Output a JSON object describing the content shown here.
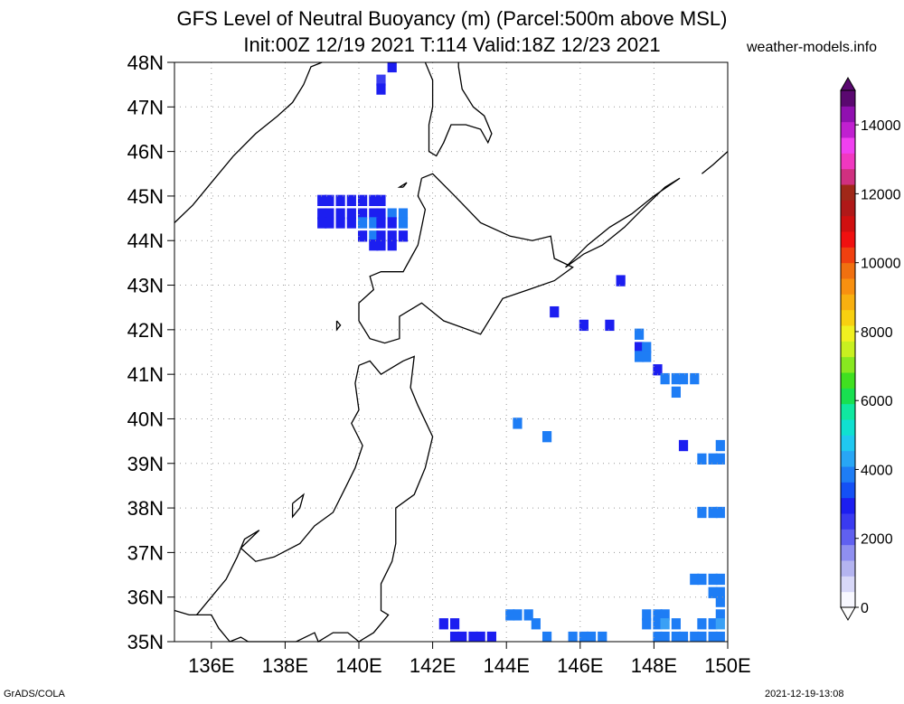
{
  "title_line1": "GFS Level of Neutral Buoyancy (m) (Parcel:500m above MSL)",
  "title_line2": "Init:00Z 12/19 2021 T:114 Valid:18Z 12/23 2021",
  "site": "weather-models.info",
  "footer_left": "GrADS/COLA",
  "footer_right": "2021-12-19-13:08",
  "map": {
    "lon_range": [
      135,
      150
    ],
    "lat_range": [
      35,
      48
    ],
    "lat_labels": [
      "48N",
      "47N",
      "46N",
      "45N",
      "44N",
      "43N",
      "42N",
      "41N",
      "40N",
      "39N",
      "38N",
      "37N",
      "36N",
      "35N"
    ],
    "lon_labels": [
      "136E",
      "138E",
      "140E",
      "142E",
      "144E",
      "146E",
      "148E",
      "150E"
    ],
    "grid": "dotted"
  },
  "colorbar": {
    "labels": [
      "14000",
      "12000",
      "10000",
      "8000",
      "6000",
      "4000",
      "2000",
      "0"
    ],
    "range": [
      0,
      15000
    ]
  },
  "field_cells": [
    {
      "lon": 139.0,
      "lat": 44.9,
      "c": "#1c1ef0"
    },
    {
      "lon": 139.2,
      "lat": 44.9,
      "c": "#1c1ef0"
    },
    {
      "lon": 139.5,
      "lat": 44.9,
      "c": "#1c1ef0"
    },
    {
      "lon": 139.8,
      "lat": 44.9,
      "c": "#1c1ef0"
    },
    {
      "lon": 140.1,
      "lat": 44.9,
      "c": "#1c1ef0"
    },
    {
      "lon": 140.4,
      "lat": 44.9,
      "c": "#1c1ef0"
    },
    {
      "lon": 140.6,
      "lat": 44.9,
      "c": "#1c1ef0"
    },
    {
      "lon": 139.0,
      "lat": 44.6,
      "c": "#1c1ef0"
    },
    {
      "lon": 139.2,
      "lat": 44.6,
      "c": "#1c1ef0"
    },
    {
      "lon": 139.5,
      "lat": 44.6,
      "c": "#1c1ef0"
    },
    {
      "lon": 139.8,
      "lat": 44.6,
      "c": "#1c1ef0"
    },
    {
      "lon": 140.1,
      "lat": 44.6,
      "c": "#1c1ef0"
    },
    {
      "lon": 140.4,
      "lat": 44.6,
      "c": "#1c1ef0"
    },
    {
      "lon": 140.6,
      "lat": 44.6,
      "c": "#1c1ef0"
    },
    {
      "lon": 140.9,
      "lat": 44.6,
      "c": "#1e7df5"
    },
    {
      "lon": 141.2,
      "lat": 44.6,
      "c": "#1e7df5"
    },
    {
      "lon": 139.0,
      "lat": 44.4,
      "c": "#1c1ef0"
    },
    {
      "lon": 139.2,
      "lat": 44.4,
      "c": "#1c1ef0"
    },
    {
      "lon": 139.5,
      "lat": 44.4,
      "c": "#1c1ef0"
    },
    {
      "lon": 139.8,
      "lat": 44.4,
      "c": "#1c1ef0"
    },
    {
      "lon": 140.1,
      "lat": 44.4,
      "c": "#1e7df5"
    },
    {
      "lon": 140.4,
      "lat": 44.4,
      "c": "#1e7df5"
    },
    {
      "lon": 140.6,
      "lat": 44.4,
      "c": "#1c1ef0"
    },
    {
      "lon": 140.9,
      "lat": 44.4,
      "c": "#1c1ef0"
    },
    {
      "lon": 141.2,
      "lat": 44.4,
      "c": "#1e7df5"
    },
    {
      "lon": 140.1,
      "lat": 44.1,
      "c": "#1c1ef0"
    },
    {
      "lon": 140.4,
      "lat": 44.1,
      "c": "#1e7df5"
    },
    {
      "lon": 140.6,
      "lat": 44.1,
      "c": "#1c1ef0"
    },
    {
      "lon": 140.9,
      "lat": 44.1,
      "c": "#1c1ef0"
    },
    {
      "lon": 141.2,
      "lat": 44.1,
      "c": "#1c1ef0"
    },
    {
      "lon": 140.4,
      "lat": 43.9,
      "c": "#1c1ef0"
    },
    {
      "lon": 140.6,
      "lat": 43.9,
      "c": "#1c1ef0"
    },
    {
      "lon": 140.9,
      "lat": 43.9,
      "c": "#1c1ef0"
    },
    {
      "lon": 140.9,
      "lat": 47.9,
      "c": "#1c1ef0"
    },
    {
      "lon": 140.6,
      "lat": 47.6,
      "c": "#3a3df0"
    },
    {
      "lon": 140.6,
      "lat": 47.4,
      "c": "#1c1ef0"
    },
    {
      "lon": 147.1,
      "lat": 43.1,
      "c": "#1c1ef0"
    },
    {
      "lon": 145.3,
      "lat": 42.4,
      "c": "#1c1ef0"
    },
    {
      "lon": 146.1,
      "lat": 42.1,
      "c": "#1c1ef0"
    },
    {
      "lon": 146.8,
      "lat": 42.1,
      "c": "#1c1ef0"
    },
    {
      "lon": 147.6,
      "lat": 41.9,
      "c": "#1e7df5"
    },
    {
      "lon": 147.6,
      "lat": 41.6,
      "c": "#1c1ef0"
    },
    {
      "lon": 147.6,
      "lat": 41.4,
      "c": "#1e7df5"
    },
    {
      "lon": 147.8,
      "lat": 41.6,
      "c": "#1e7df5"
    },
    {
      "lon": 147.8,
      "lat": 41.4,
      "c": "#1e7df5"
    },
    {
      "lon": 148.1,
      "lat": 41.1,
      "c": "#1c1ef0"
    },
    {
      "lon": 148.3,
      "lat": 40.9,
      "c": "#1e7df5"
    },
    {
      "lon": 148.6,
      "lat": 40.9,
      "c": "#1e7df5"
    },
    {
      "lon": 148.8,
      "lat": 40.9,
      "c": "#1e7df5"
    },
    {
      "lon": 149.1,
      "lat": 40.9,
      "c": "#1e7df5"
    },
    {
      "lon": 148.6,
      "lat": 40.6,
      "c": "#1e7df5"
    },
    {
      "lon": 144.3,
      "lat": 39.9,
      "c": "#1e7df5"
    },
    {
      "lon": 145.1,
      "lat": 39.6,
      "c": "#1e7df5"
    },
    {
      "lon": 148.8,
      "lat": 39.4,
      "c": "#1c1ef0"
    },
    {
      "lon": 149.8,
      "lat": 39.4,
      "c": "#1e7df5"
    },
    {
      "lon": 149.3,
      "lat": 39.1,
      "c": "#1e7df5"
    },
    {
      "lon": 149.6,
      "lat": 39.1,
      "c": "#1e7df5"
    },
    {
      "lon": 149.8,
      "lat": 39.1,
      "c": "#1e7df5"
    },
    {
      "lon": 149.3,
      "lat": 37.9,
      "c": "#1e7df5"
    },
    {
      "lon": 149.6,
      "lat": 37.9,
      "c": "#1e7df5"
    },
    {
      "lon": 149.8,
      "lat": 37.9,
      "c": "#1e7df5"
    },
    {
      "lon": 149.1,
      "lat": 36.4,
      "c": "#1e7df5"
    },
    {
      "lon": 149.3,
      "lat": 36.4,
      "c": "#1e7df5"
    },
    {
      "lon": 149.6,
      "lat": 36.4,
      "c": "#1e7df5"
    },
    {
      "lon": 149.8,
      "lat": 36.4,
      "c": "#1e7df5"
    },
    {
      "lon": 149.6,
      "lat": 36.1,
      "c": "#1e7df5"
    },
    {
      "lon": 149.8,
      "lat": 36.1,
      "c": "#1e7df5"
    },
    {
      "lon": 149.8,
      "lat": 35.9,
      "c": "#1e7df5"
    },
    {
      "lon": 149.8,
      "lat": 35.6,
      "c": "#1e7df5"
    },
    {
      "lon": 144.1,
      "lat": 35.6,
      "c": "#1e7df5"
    },
    {
      "lon": 144.3,
      "lat": 35.6,
      "c": "#1e7df5"
    },
    {
      "lon": 144.6,
      "lat": 35.6,
      "c": "#1e7df5"
    },
    {
      "lon": 142.3,
      "lat": 35.4,
      "c": "#1c1ef0"
    },
    {
      "lon": 142.6,
      "lat": 35.4,
      "c": "#1c1ef0"
    },
    {
      "lon": 144.8,
      "lat": 35.4,
      "c": "#1e7df5"
    },
    {
      "lon": 142.6,
      "lat": 35.1,
      "c": "#1c1ef0"
    },
    {
      "lon": 142.8,
      "lat": 35.1,
      "c": "#1c1ef0"
    },
    {
      "lon": 143.1,
      "lat": 35.1,
      "c": "#1c1ef0"
    },
    {
      "lon": 143.3,
      "lat": 35.1,
      "c": "#1c1ef0"
    },
    {
      "lon": 143.6,
      "lat": 35.1,
      "c": "#1c1ef0"
    },
    {
      "lon": 145.1,
      "lat": 35.1,
      "c": "#1e7df5"
    },
    {
      "lon": 145.8,
      "lat": 35.1,
      "c": "#1e7df5"
    },
    {
      "lon": 146.1,
      "lat": 35.1,
      "c": "#1e7df5"
    },
    {
      "lon": 146.3,
      "lat": 35.1,
      "c": "#1e7df5"
    },
    {
      "lon": 146.6,
      "lat": 35.1,
      "c": "#1e7df5"
    },
    {
      "lon": 147.8,
      "lat": 35.6,
      "c": "#1e7df5"
    },
    {
      "lon": 148.1,
      "lat": 35.6,
      "c": "#1e7df5"
    },
    {
      "lon": 148.3,
      "lat": 35.6,
      "c": "#1e7df5"
    },
    {
      "lon": 147.8,
      "lat": 35.4,
      "c": "#1e7df5"
    },
    {
      "lon": 148.1,
      "lat": 35.4,
      "c": "#1e7df5"
    },
    {
      "lon": 148.3,
      "lat": 35.4,
      "c": "#3aa0f5"
    },
    {
      "lon": 148.6,
      "lat": 35.4,
      "c": "#1e7df5"
    },
    {
      "lon": 149.3,
      "lat": 35.4,
      "c": "#1e7df5"
    },
    {
      "lon": 149.6,
      "lat": 35.4,
      "c": "#1e7df5"
    },
    {
      "lon": 149.8,
      "lat": 35.4,
      "c": "#3aa0f5"
    },
    {
      "lon": 148.1,
      "lat": 35.1,
      "c": "#1e7df5"
    },
    {
      "lon": 148.3,
      "lat": 35.1,
      "c": "#1e7df5"
    },
    {
      "lon": 148.6,
      "lat": 35.1,
      "c": "#1e7df5"
    },
    {
      "lon": 148.8,
      "lat": 35.1,
      "c": "#1e7df5"
    },
    {
      "lon": 149.1,
      "lat": 35.1,
      "c": "#1e7df5"
    },
    {
      "lon": 149.3,
      "lat": 35.1,
      "c": "#1e7df5"
    },
    {
      "lon": 149.6,
      "lat": 35.1,
      "c": "#1e7df5"
    },
    {
      "lon": 149.8,
      "lat": 35.1,
      "c": "#1e7df5"
    }
  ],
  "colorbar_colors": [
    "#f8f8ff",
    "#d8d8f8",
    "#b4b4f0",
    "#8f8ff0",
    "#6060f0",
    "#3a3af0",
    "#1c1ef0",
    "#1450f5",
    "#1e7df5",
    "#28a6f5",
    "#20c8f0",
    "#10e0d0",
    "#10e8a0",
    "#18e050",
    "#40e020",
    "#88e820",
    "#c8f020",
    "#f0f020",
    "#f8d010",
    "#f8b010",
    "#f89010",
    "#f07010",
    "#f04010",
    "#f01010",
    "#d01010",
    "#b01818",
    "#a02818",
    "#d03080",
    "#f038c0",
    "#f040f0",
    "#c020d0",
    "#9010b0",
    "#5a0870"
  ],
  "coastlines": [
    [
      [
        135.0,
        44.4
      ],
      [
        135.5,
        44.8
      ],
      [
        136.0,
        45.3
      ],
      [
        136.6,
        45.9
      ],
      [
        137.2,
        46.4
      ],
      [
        137.8,
        46.8
      ],
      [
        138.2,
        47.1
      ],
      [
        138.5,
        47.5
      ],
      [
        138.7,
        47.9
      ],
      [
        139.0,
        48.0
      ]
    ],
    [
      [
        141.8,
        48.0
      ],
      [
        142.0,
        47.6
      ],
      [
        142.0,
        47.0
      ],
      [
        141.9,
        46.6
      ],
      [
        141.9,
        46.0
      ],
      [
        142.1,
        45.9
      ],
      [
        142.3,
        46.2
      ],
      [
        142.5,
        46.6
      ],
      [
        142.9,
        46.6
      ],
      [
        143.3,
        46.5
      ],
      [
        143.5,
        46.2
      ],
      [
        143.6,
        46.4
      ],
      [
        143.4,
        46.8
      ],
      [
        143.1,
        47.0
      ],
      [
        142.8,
        47.4
      ],
      [
        142.7,
        47.9
      ],
      [
        142.7,
        48.0
      ]
    ],
    [
      [
        141.7,
        45.4
      ],
      [
        141.6,
        45.0
      ],
      [
        141.8,
        44.7
      ],
      [
        141.7,
        44.3
      ],
      [
        141.6,
        43.9
      ],
      [
        141.4,
        43.6
      ],
      [
        141.2,
        43.3
      ],
      [
        140.6,
        43.3
      ],
      [
        140.3,
        43.2
      ],
      [
        140.4,
        42.9
      ],
      [
        140.0,
        42.6
      ],
      [
        140.0,
        42.2
      ],
      [
        140.3,
        41.8
      ],
      [
        140.7,
        41.7
      ],
      [
        141.1,
        41.8
      ],
      [
        141.1,
        42.3
      ],
      [
        141.7,
        42.6
      ],
      [
        142.3,
        42.2
      ],
      [
        143.3,
        41.9
      ],
      [
        143.9,
        42.7
      ],
      [
        144.6,
        42.9
      ],
      [
        145.3,
        43.1
      ],
      [
        145.8,
        43.4
      ],
      [
        145.3,
        43.6
      ],
      [
        145.2,
        44.1
      ],
      [
        144.7,
        44.0
      ],
      [
        144.1,
        44.1
      ],
      [
        143.3,
        44.4
      ],
      [
        142.6,
        45.0
      ],
      [
        142.0,
        45.5
      ],
      [
        141.7,
        45.4
      ]
    ],
    [
      [
        140.0,
        41.2
      ],
      [
        140.3,
        41.3
      ],
      [
        140.6,
        41.0
      ],
      [
        141.0,
        41.2
      ],
      [
        141.2,
        41.3
      ],
      [
        141.5,
        41.4
      ],
      [
        141.4,
        40.7
      ],
      [
        141.6,
        40.3
      ],
      [
        142.0,
        39.6
      ],
      [
        141.8,
        38.9
      ],
      [
        141.5,
        38.3
      ],
      [
        141.0,
        38.0
      ],
      [
        141.0,
        37.2
      ],
      [
        140.9,
        36.8
      ],
      [
        140.6,
        36.3
      ],
      [
        140.6,
        35.7
      ],
      [
        140.8,
        35.6
      ],
      [
        140.4,
        35.2
      ],
      [
        140.0,
        35.0
      ],
      [
        139.7,
        35.2
      ],
      [
        139.3,
        35.2
      ],
      [
        138.9,
        35.0
      ],
      [
        138.8,
        35.2
      ],
      [
        138.3,
        35.0
      ],
      [
        137.5,
        35.0
      ],
      [
        137.0,
        35.0
      ],
      [
        136.8,
        35.1
      ],
      [
        136.5,
        35.0
      ],
      [
        136.2,
        35.3
      ],
      [
        136.0,
        35.6
      ],
      [
        135.4,
        35.6
      ],
      [
        135.0,
        35.7
      ]
    ],
    [
      [
        140.0,
        41.2
      ],
      [
        139.9,
        40.8
      ],
      [
        140.0,
        40.2
      ],
      [
        139.8,
        39.9
      ],
      [
        140.1,
        39.4
      ],
      [
        139.9,
        38.9
      ],
      [
        139.6,
        38.4
      ],
      [
        139.3,
        37.9
      ],
      [
        138.8,
        37.6
      ],
      [
        138.4,
        37.2
      ],
      [
        137.7,
        36.9
      ],
      [
        137.2,
        36.8
      ],
      [
        136.8,
        37.1
      ],
      [
        137.3,
        37.5
      ],
      [
        136.9,
        37.3
      ],
      [
        136.7,
        36.9
      ],
      [
        136.4,
        36.4
      ],
      [
        136.0,
        36.0
      ],
      [
        135.6,
        35.6
      ]
    ],
    [
      [
        138.2,
        38.1
      ],
      [
        138.5,
        38.3
      ],
      [
        138.4,
        38.0
      ],
      [
        138.2,
        37.8
      ],
      [
        138.2,
        38.1
      ]
    ],
    [
      [
        139.4,
        42.2
      ],
      [
        139.5,
        42.1
      ],
      [
        139.4,
        42.0
      ],
      [
        139.4,
        42.2
      ]
    ],
    [
      [
        141.2,
        45.2
      ],
      [
        141.3,
        45.3
      ],
      [
        141.1,
        45.2
      ],
      [
        141.2,
        45.2
      ]
    ],
    [
      [
        145.6,
        43.4
      ],
      [
        146.1,
        43.7
      ],
      [
        146.6,
        43.9
      ],
      [
        147.2,
        44.3
      ],
      [
        147.8,
        44.8
      ],
      [
        148.3,
        45.2
      ],
      [
        148.7,
        45.4
      ],
      [
        148.0,
        45.0
      ],
      [
        147.4,
        44.6
      ],
      [
        146.8,
        44.3
      ],
      [
        146.2,
        43.9
      ],
      [
        145.6,
        43.4
      ]
    ],
    [
      [
        149.3,
        45.5
      ],
      [
        149.6,
        45.7
      ],
      [
        150.0,
        46.0
      ]
    ]
  ]
}
